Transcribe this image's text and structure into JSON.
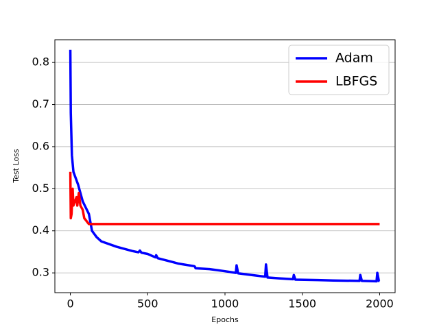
{
  "chart_data": {
    "type": "line",
    "x_label": "Epochs",
    "y_label": "Test Loss",
    "xlim": [
      -100,
      2100
    ],
    "xticks": [
      0,
      500,
      1000,
      1500,
      2000
    ],
    "ylim": [
      0.253,
      0.854
    ],
    "yticks": [
      0.3,
      0.4,
      0.5,
      0.6,
      0.7,
      0.8
    ],
    "grid": "y",
    "legend": "upper-right",
    "series": [
      {
        "name": "Adam",
        "color": "#0000ff",
        "x": [
          0,
          3,
          10,
          20,
          50,
          80,
          120,
          140,
          170,
          200,
          300,
          400,
          440,
          450,
          460,
          500,
          550,
          555,
          565,
          700,
          800,
          805,
          810,
          900,
          1000,
          1070,
          1075,
          1085,
          1150,
          1260,
          1265,
          1275,
          1350,
          1440,
          1445,
          1455,
          1600,
          1700,
          1870,
          1875,
          1885,
          1980,
          1985,
          1995,
          2000
        ],
        "values": [
          0.83,
          0.68,
          0.58,
          0.54,
          0.51,
          0.47,
          0.44,
          0.4,
          0.385,
          0.375,
          0.362,
          0.352,
          0.349,
          0.353,
          0.348,
          0.345,
          0.337,
          0.342,
          0.335,
          0.322,
          0.316,
          0.315,
          0.311,
          0.309,
          0.304,
          0.3,
          0.318,
          0.299,
          0.296,
          0.291,
          0.32,
          0.289,
          0.287,
          0.285,
          0.295,
          0.284,
          0.283,
          0.282,
          0.281,
          0.295,
          0.281,
          0.28,
          0.3,
          0.281,
          0.28
        ]
      },
      {
        "name": "LBFGS",
        "color": "#ff0000",
        "x": [
          0,
          3,
          8,
          15,
          20,
          30,
          40,
          45,
          55,
          65,
          80,
          90,
          120,
          2000
        ],
        "values": [
          0.54,
          0.43,
          0.44,
          0.5,
          0.46,
          0.47,
          0.48,
          0.46,
          0.49,
          0.46,
          0.45,
          0.43,
          0.416,
          0.416
        ]
      }
    ]
  }
}
